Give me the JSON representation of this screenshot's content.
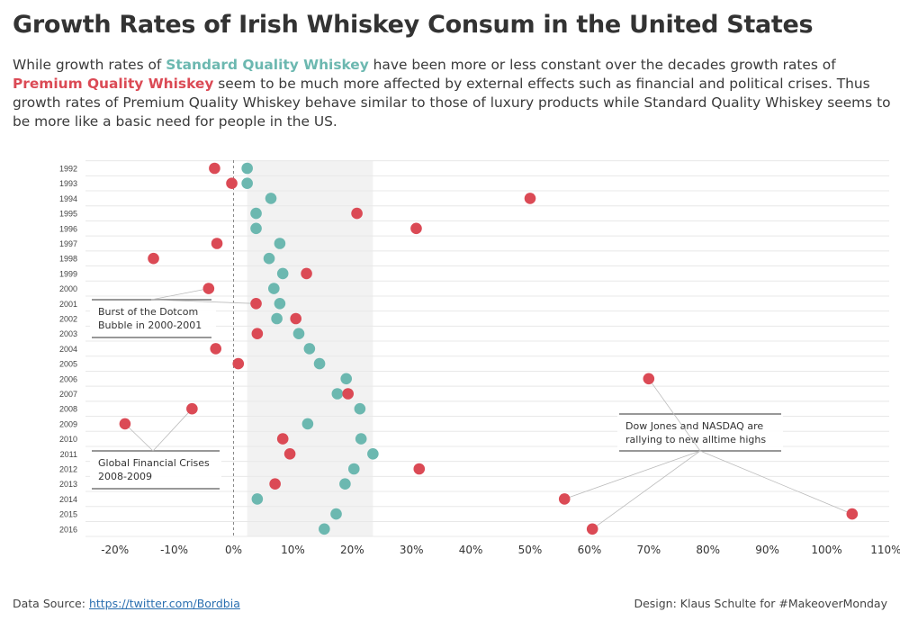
{
  "title": "Growth Rates of Irish Whiskey Consum in the United States",
  "subtitle": {
    "part1": "While growth rates of ",
    "std_label": "Standard Quality Whiskey",
    "part2": " have been more or less constant over the decades  growth rates of ",
    "prem_label": "Premium Quality Whiskey",
    "part3": " seem to be much more affected by external effects such as financial and political crises. Thus growth rates of Premium Quality Whiskey behave similar to those of luxury products while Standard Quality Whiskey seems to be more like a basic need for people in the US."
  },
  "colors": {
    "standard": "#6cb8b0",
    "premium": "#db4a55",
    "band": "#f2f2f2",
    "zero_line": "#888888"
  },
  "footer": {
    "source_label": "Data Source: ",
    "source_link": "https://twitter.com/Bordbia",
    "credit": "Design: Klaus Schulte for #MakeoverMonday"
  },
  "chart_data": {
    "type": "scatter",
    "categories": [
      "1992",
      "1993",
      "1994",
      "1995",
      "1996",
      "1997",
      "1998",
      "1999",
      "2000",
      "2001",
      "2002",
      "2003",
      "2004",
      "2005",
      "2006",
      "2007",
      "2008",
      "2009",
      "2010",
      "2011",
      "2012",
      "2013",
      "2014",
      "2015",
      "2016"
    ],
    "series": [
      {
        "name": "Standard Quality Whiskey",
        "color": "#6cb8b0",
        "values": [
          2.3,
          2.3,
          6.3,
          3.8,
          3.8,
          7.8,
          6.0,
          8.3,
          6.8,
          7.8,
          7.3,
          11.0,
          12.8,
          14.5,
          19.0,
          17.5,
          21.3,
          12.5,
          21.5,
          23.5,
          20.3,
          18.8,
          4.0,
          17.3,
          15.3
        ]
      },
      {
        "name": "Premium Quality Whiskey",
        "color": "#db4a55",
        "values": [
          -3.2,
          -0.3,
          50.0,
          20.8,
          30.8,
          -2.8,
          -13.5,
          12.3,
          -4.2,
          3.8,
          10.5,
          4.0,
          -3.0,
          0.8,
          70.0,
          19.3,
          -7.0,
          -18.3,
          8.3,
          9.5,
          31.3,
          7.0,
          55.8,
          104.3,
          60.5
        ]
      }
    ],
    "x_ticks": [
      "-20%",
      "-10%",
      "0%",
      "10%",
      "20%",
      "30%",
      "40%",
      "50%",
      "60%",
      "70%",
      "80%",
      "90%",
      "100%",
      "110%"
    ],
    "xlim": [
      -25,
      112
    ],
    "band_range": [
      2.3,
      23.5
    ],
    "annotations": [
      {
        "text_line1": "Burst of the Dotcom",
        "text_line2": "Bubble in 2000-2001",
        "targets": [
          [
            "2000",
            -4.2
          ],
          [
            "2001",
            3.8
          ]
        ]
      },
      {
        "text_line1": "Global Financial Crises",
        "text_line2": "2008-2009",
        "targets": [
          [
            "2008",
            -7.0
          ],
          [
            "2009",
            -18.3
          ]
        ]
      },
      {
        "text_line1": "Dow Jones and NASDAQ are",
        "text_line2": "rallying to new alltime highs",
        "targets": [
          [
            "2006",
            70.0
          ],
          [
            "2014",
            55.8
          ],
          [
            "2015",
            104.3
          ],
          [
            "2016",
            60.5
          ]
        ]
      }
    ]
  }
}
